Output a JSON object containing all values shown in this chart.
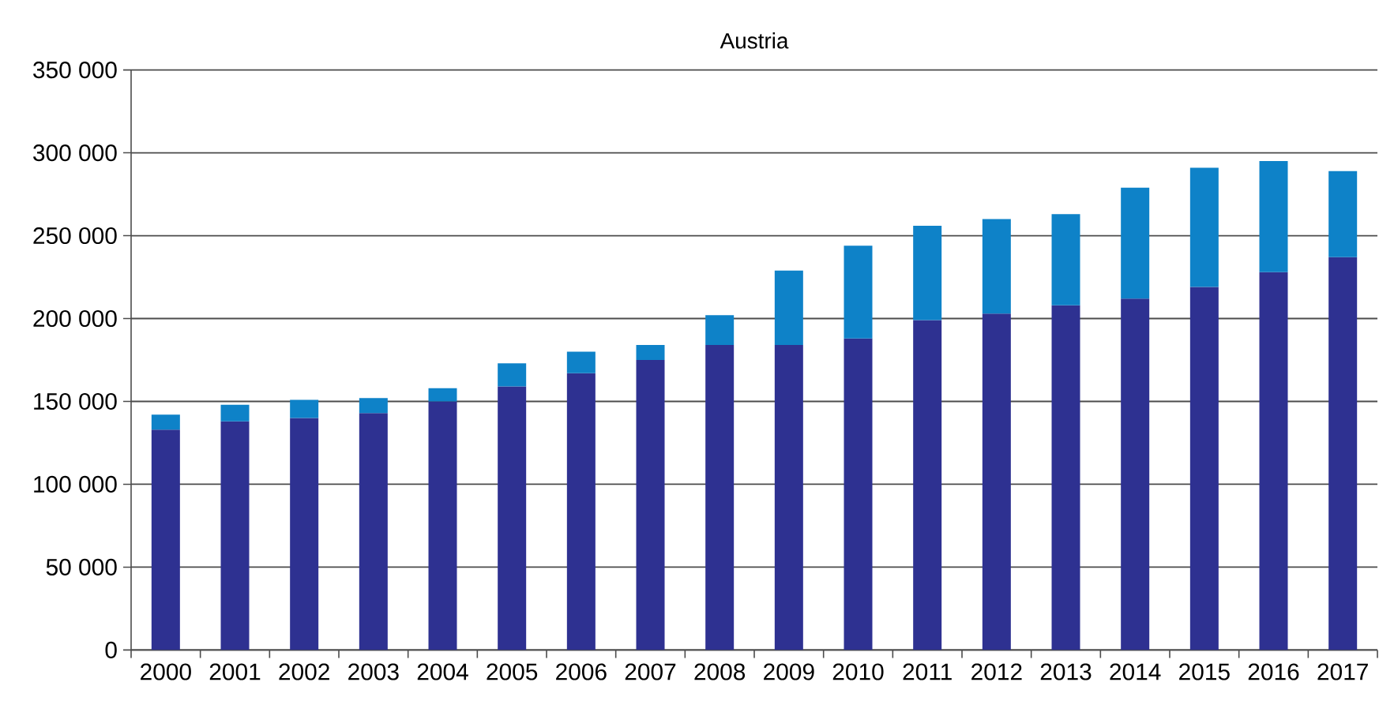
{
  "chart_data": {
    "type": "bar",
    "title": "Austria",
    "stacked": true,
    "grid": "y",
    "categories": [
      "2000",
      "2001",
      "2002",
      "2003",
      "2004",
      "2005",
      "2006",
      "2007",
      "2008",
      "2009",
      "2010",
      "2011",
      "2012",
      "2013",
      "2014",
      "2015",
      "2016",
      "2017"
    ],
    "series": [
      {
        "color": "#2e3191",
        "values": [
          133000,
          138000,
          140000,
          143000,
          150000,
          159000,
          167000,
          175000,
          184000,
          184000,
          188000,
          199000,
          203000,
          208000,
          212000,
          219000,
          228000,
          237000
        ]
      },
      {
        "color": "#0e82c8",
        "values": [
          9000,
          10000,
          11000,
          9000,
          8000,
          14000,
          13000,
          9000,
          18000,
          45000,
          56000,
          57000,
          57000,
          55000,
          67000,
          72000,
          67000,
          52000
        ]
      }
    ],
    "ylim": [
      0,
      350000
    ],
    "yticks": [
      {
        "value": 0,
        "label": "0"
      },
      {
        "value": 50000,
        "label": "50 000"
      },
      {
        "value": 100000,
        "label": "100 000"
      },
      {
        "value": 150000,
        "label": "150 000"
      },
      {
        "value": 200000,
        "label": "200 000"
      },
      {
        "value": 250000,
        "label": "250 000"
      },
      {
        "value": 300000,
        "label": "300 000"
      },
      {
        "value": 350000,
        "label": "350 000"
      }
    ]
  }
}
